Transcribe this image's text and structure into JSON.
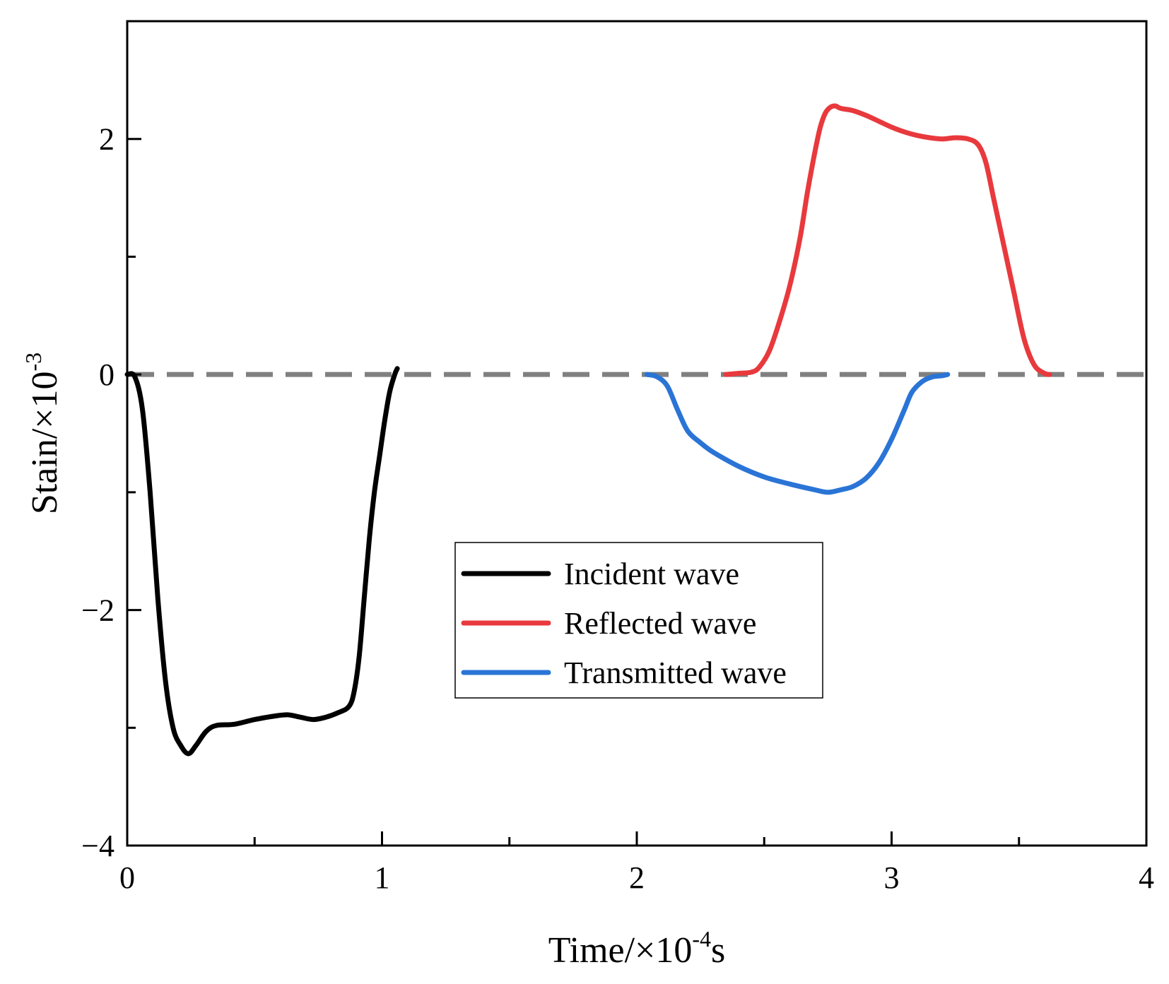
{
  "chart_data": {
    "type": "line",
    "title": "",
    "xlabel": {
      "main": "Time/×10",
      "sup": "-4",
      "unit": "s"
    },
    "ylabel": {
      "main": "Stain/×10",
      "sup": "-3"
    },
    "xlim": [
      0,
      4
    ],
    "ylim": [
      -4,
      3
    ],
    "x_ticks": [
      0,
      1,
      2,
      3,
      4
    ],
    "x_tick_labels": [
      "0",
      "1",
      "2",
      "3",
      "4"
    ],
    "x_minor_ticks": [
      0.5,
      1.5,
      2.5,
      3.5
    ],
    "y_ticks": [
      -4,
      -2,
      0,
      2
    ],
    "y_tick_labels": [
      "−4",
      "−2",
      "0",
      "2"
    ],
    "y_minor_ticks": [
      -3,
      -1,
      1
    ],
    "grid": false,
    "legend_position": "center",
    "reference_line": {
      "y": 0,
      "style": "dashed",
      "color": "#808080"
    },
    "series": [
      {
        "name": "Incident wave",
        "color": "#000000",
        "points": [
          [
            0.0,
            0.0
          ],
          [
            0.03,
            -0.02
          ],
          [
            0.06,
            -0.3
          ],
          [
            0.09,
            -1.0
          ],
          [
            0.12,
            -1.9
          ],
          [
            0.15,
            -2.6
          ],
          [
            0.18,
            -3.0
          ],
          [
            0.21,
            -3.15
          ],
          [
            0.24,
            -3.22
          ],
          [
            0.27,
            -3.15
          ],
          [
            0.31,
            -3.03
          ],
          [
            0.35,
            -2.98
          ],
          [
            0.42,
            -2.97
          ],
          [
            0.5,
            -2.93
          ],
          [
            0.58,
            -2.9
          ],
          [
            0.63,
            -2.89
          ],
          [
            0.68,
            -2.91
          ],
          [
            0.73,
            -2.93
          ],
          [
            0.78,
            -2.91
          ],
          [
            0.83,
            -2.87
          ],
          [
            0.87,
            -2.82
          ],
          [
            0.89,
            -2.7
          ],
          [
            0.91,
            -2.4
          ],
          [
            0.93,
            -1.9
          ],
          [
            0.95,
            -1.4
          ],
          [
            0.97,
            -1.0
          ],
          [
            0.99,
            -0.7
          ],
          [
            1.01,
            -0.4
          ],
          [
            1.03,
            -0.15
          ],
          [
            1.05,
            0.0
          ],
          [
            1.06,
            0.05
          ]
        ]
      },
      {
        "name": "Reflected wave",
        "color": "#e8393d",
        "points": [
          [
            2.35,
            0.0
          ],
          [
            2.4,
            0.01
          ],
          [
            2.45,
            0.02
          ],
          [
            2.48,
            0.06
          ],
          [
            2.52,
            0.2
          ],
          [
            2.56,
            0.45
          ],
          [
            2.6,
            0.75
          ],
          [
            2.64,
            1.15
          ],
          [
            2.67,
            1.55
          ],
          [
            2.7,
            1.9
          ],
          [
            2.72,
            2.1
          ],
          [
            2.74,
            2.22
          ],
          [
            2.76,
            2.27
          ],
          [
            2.78,
            2.28
          ],
          [
            2.8,
            2.26
          ],
          [
            2.85,
            2.24
          ],
          [
            2.9,
            2.2
          ],
          [
            2.95,
            2.15
          ],
          [
            3.0,
            2.1
          ],
          [
            3.05,
            2.06
          ],
          [
            3.1,
            2.03
          ],
          [
            3.15,
            2.01
          ],
          [
            3.2,
            2.0
          ],
          [
            3.25,
            2.01
          ],
          [
            3.3,
            2.0
          ],
          [
            3.34,
            1.95
          ],
          [
            3.37,
            1.8
          ],
          [
            3.4,
            1.5
          ],
          [
            3.44,
            1.1
          ],
          [
            3.48,
            0.7
          ],
          [
            3.52,
            0.3
          ],
          [
            3.56,
            0.08
          ],
          [
            3.6,
            0.01
          ],
          [
            3.62,
            0.0
          ]
        ]
      },
      {
        "name": "Transmitted wave",
        "color": "#2a74d6",
        "points": [
          [
            2.04,
            0.0
          ],
          [
            2.08,
            -0.02
          ],
          [
            2.12,
            -0.1
          ],
          [
            2.16,
            -0.3
          ],
          [
            2.2,
            -0.48
          ],
          [
            2.25,
            -0.58
          ],
          [
            2.3,
            -0.66
          ],
          [
            2.4,
            -0.78
          ],
          [
            2.5,
            -0.87
          ],
          [
            2.6,
            -0.93
          ],
          [
            2.7,
            -0.98
          ],
          [
            2.75,
            -1.0
          ],
          [
            2.8,
            -0.98
          ],
          [
            2.85,
            -0.95
          ],
          [
            2.9,
            -0.88
          ],
          [
            2.95,
            -0.75
          ],
          [
            3.0,
            -0.55
          ],
          [
            3.05,
            -0.3
          ],
          [
            3.08,
            -0.15
          ],
          [
            3.12,
            -0.06
          ],
          [
            3.16,
            -0.02
          ],
          [
            3.2,
            -0.01
          ],
          [
            3.22,
            0.0
          ]
        ]
      }
    ]
  }
}
